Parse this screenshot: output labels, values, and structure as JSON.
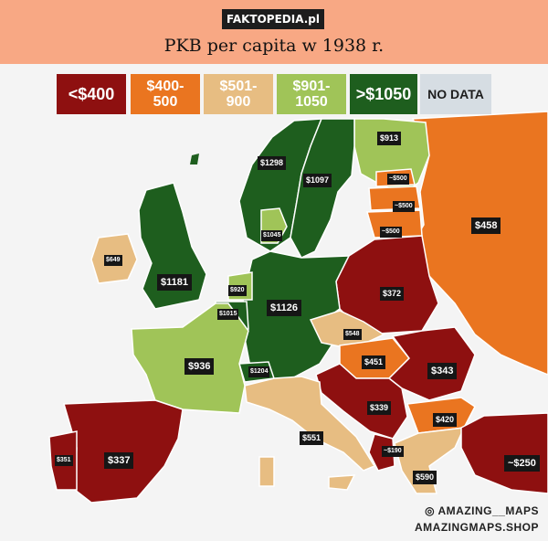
{
  "header": {
    "site_tag": "FAKTOPEDIA.pl",
    "title": "PKB per capita w 1938 r."
  },
  "colors": {
    "under_400": "#8e1010",
    "400_500": "#ea7520",
    "501_900": "#e7bd82",
    "901_1050": "#a0c458",
    "over_1050": "#1e5e1e",
    "no_data": "#d6dde3",
    "header_bg": "#f8a884"
  },
  "legend": [
    {
      "text": "<$400",
      "color": "#8e1010",
      "text_color": "#ffffff"
    },
    {
      "text": "$400-\n500",
      "color": "#ea7520",
      "text_color": "#ffffff"
    },
    {
      "text": "$501-\n900",
      "color": "#e7bd82",
      "text_color": "#ffffff"
    },
    {
      "text": "$901-\n1050",
      "color": "#a0c458",
      "text_color": "#ffffff"
    },
    {
      "text": ">$1050",
      "color": "#1e5e1e",
      "text_color": "#ffffff"
    },
    {
      "text": "NO DATA",
      "color": "#d6dde3",
      "text_color": "#1d1d1d"
    }
  ],
  "map_labels": {
    "finland": "$913",
    "norway": "$1298",
    "sweden": "$1097",
    "estonia": "~$500",
    "latvia": "~$500",
    "lithuania": "~$500",
    "ussr": "$458",
    "denmark": "$1045",
    "ireland": "$649",
    "uk": "$1181",
    "netherlands": "$920",
    "belgium": "$1015",
    "germany": "$1126",
    "poland": "$372",
    "czechoslovakia": "$548",
    "france": "$936",
    "switzerland": "$1204",
    "austria_hungary": "$451",
    "romania": "$343",
    "yugoslavia": "$339",
    "bulgaria": "$420",
    "italy": "$551",
    "albania": "~$190",
    "portugal": "$351",
    "spain": "$337",
    "greece": "$590",
    "turkey": "~$250"
  },
  "credits": {
    "instagram": "◎ AMAZING__MAPS",
    "shop": "AMAZINGMAPS.SHOP"
  }
}
